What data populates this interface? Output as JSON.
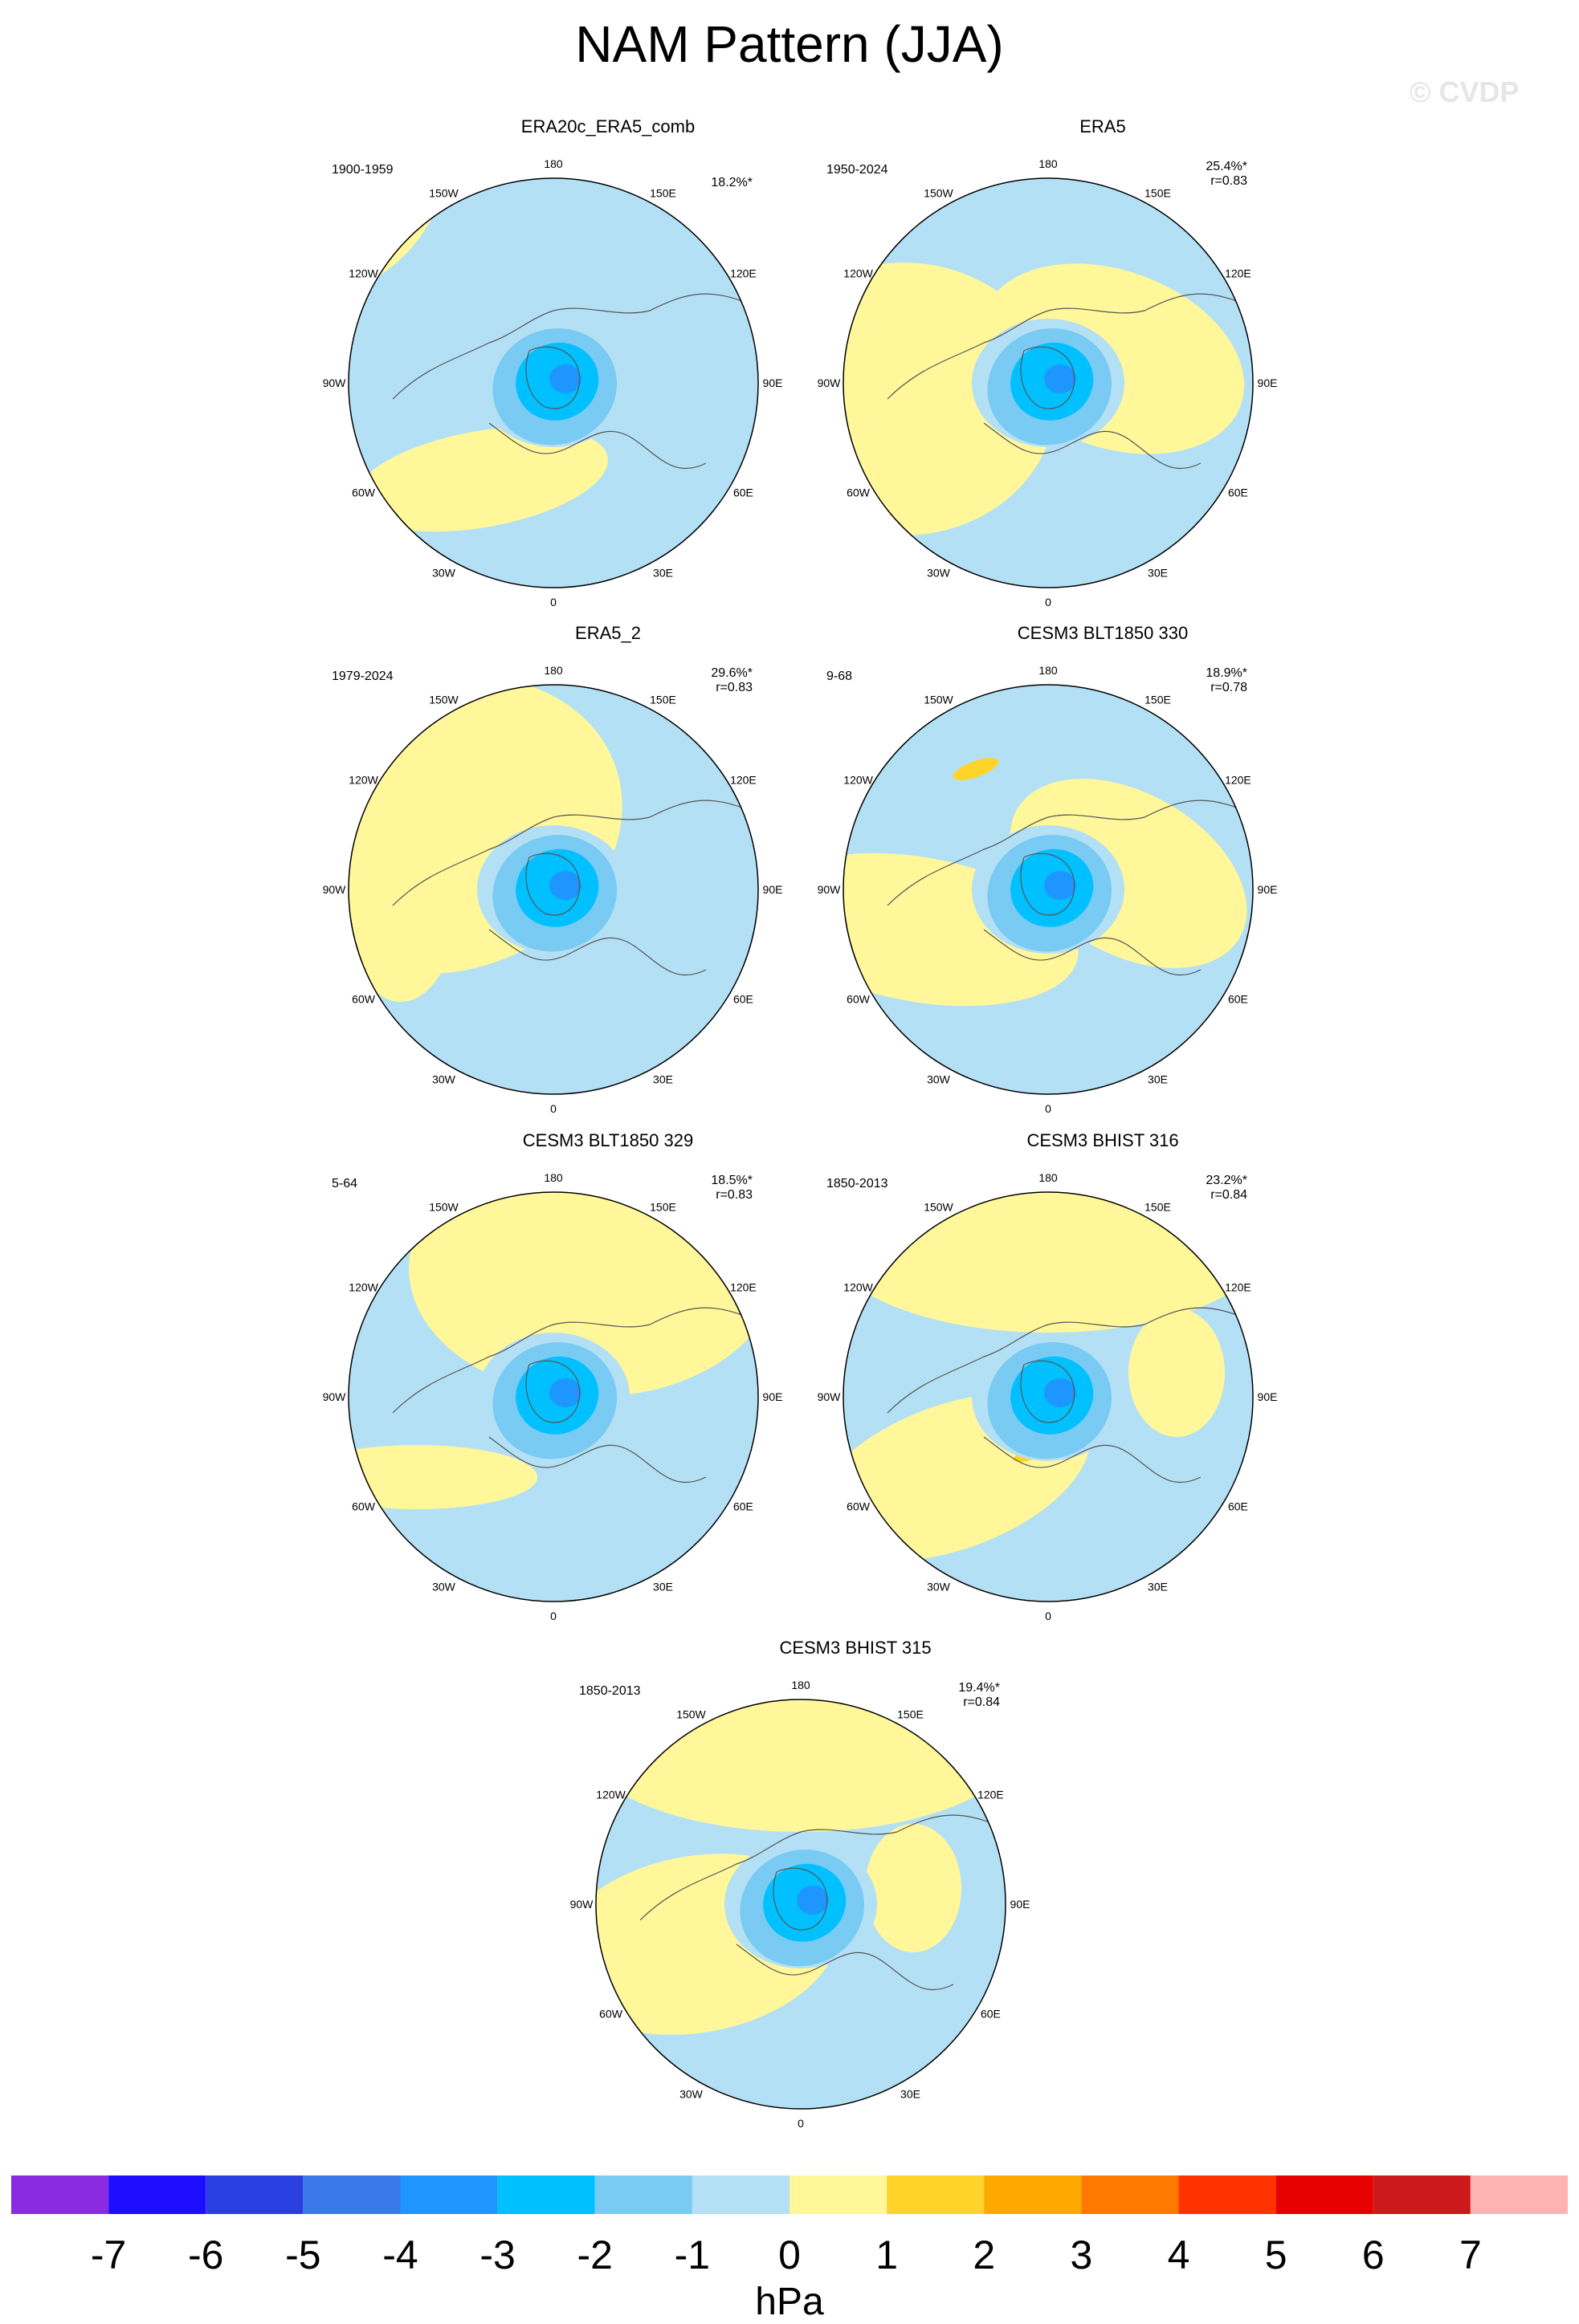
{
  "title": "NAM Pattern (JJA)",
  "watermark": "© CVDP",
  "longitude_labels": {
    "top": "180",
    "bottom": "0",
    "left_upper": "150W",
    "left_mid_upper": "120W",
    "left_mid": "90W",
    "left_mid_lower": "60W",
    "left_lower": "30W",
    "right_upper": "150E",
    "right_mid_upper": "120E",
    "right_mid": "90E",
    "right_mid_lower": "60E",
    "right_lower": "30E"
  },
  "panels": [
    {
      "title": "ERA20c_ERA5_comb",
      "period": "1900-1959",
      "pct": "18.2%*",
      "r": ""
    },
    {
      "title": "ERA5",
      "period": "1950-2024",
      "pct": "25.4%*",
      "r": "r=0.83"
    },
    {
      "title": "ERA5_2",
      "period": "1979-2024",
      "pct": "29.6%*",
      "r": "r=0.83"
    },
    {
      "title": "CESM3 BLT1850 330",
      "period": "9-68",
      "pct": "18.9%*",
      "r": "r=0.78"
    },
    {
      "title": "CESM3 BLT1850 329",
      "period": "5-64",
      "pct": "18.5%*",
      "r": "r=0.83"
    },
    {
      "title": "CESM3 BHIST 316",
      "period": "1850-2013",
      "pct": "23.2%*",
      "r": "r=0.84"
    },
    {
      "title": "CESM3 BHIST 315",
      "period": "1850-2013",
      "pct": "19.4%*",
      "r": "r=0.84"
    }
  ],
  "colorbar": {
    "ticks": [
      "-7",
      "-6",
      "-5",
      "-4",
      "-3",
      "-2",
      "-1",
      "0",
      "1",
      "2",
      "3",
      "4",
      "5",
      "6",
      "7"
    ],
    "colors": [
      "#8a2be2",
      "#1e0eff",
      "#2a3fe0",
      "#3a78ea",
      "#1e96ff",
      "#00c0ff",
      "#79cbf3",
      "#b4e0f5",
      "#fff79a",
      "#ffd42a",
      "#ffa800",
      "#ff7800",
      "#ff3200",
      "#e60000",
      "#cc1a1a",
      "#ffb3b3"
    ],
    "units": "hPa"
  },
  "map_colors": {
    "ocean_light": "#b4e0f5",
    "positive_light": "#fff79a",
    "neg2": "#79cbf3",
    "neg3": "#00c0ff",
    "neg4": "#1e96ff",
    "pos2": "#ffd42a"
  }
}
